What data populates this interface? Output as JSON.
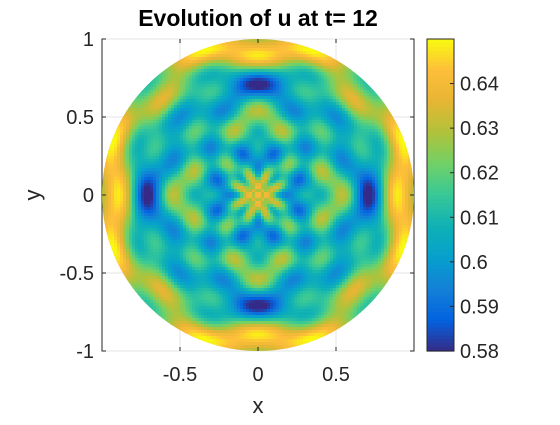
{
  "chart_data": {
    "type": "heatmap",
    "title": "Evolution of u at t= 12",
    "xlabel": "x",
    "ylabel": "y",
    "xlim": [
      -1,
      1
    ],
    "ylim": [
      -1,
      1
    ],
    "x_ticks": [
      -0.5,
      0,
      0.5
    ],
    "x_tick_labels": [
      "-0.5",
      "0",
      "0.5"
    ],
    "y_ticks": [
      1,
      0.5,
      0,
      -0.5,
      -1
    ],
    "y_tick_labels": [
      "1",
      "0.5",
      "0",
      "-0.5",
      "-1"
    ],
    "domain": "unit disk",
    "colormap": "parula",
    "colorbar": {
      "position": "right",
      "range": [
        0.58,
        0.65
      ],
      "ticks": [
        0.64,
        0.63,
        0.62,
        0.61,
        0.6,
        0.59,
        0.58
      ],
      "tick_labels": [
        "0.64",
        "0.63",
        "0.62",
        "0.61",
        "0.6",
        "0.59",
        "0.58"
      ]
    },
    "grid": true,
    "field": {
      "description": "radially symmetric oscillatory pattern with 4-fold angular modulation",
      "center_value": 0.625,
      "min_value": 0.58,
      "max_value": 0.65
    }
  }
}
